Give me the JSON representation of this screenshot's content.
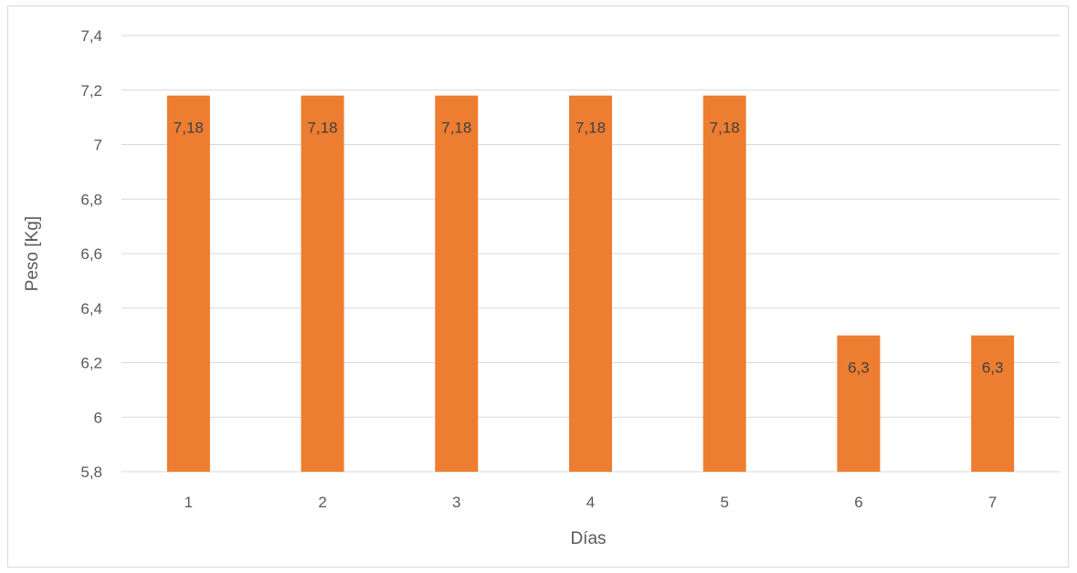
{
  "chart_data": {
    "type": "bar",
    "categories": [
      "1",
      "2",
      "3",
      "4",
      "5",
      "6",
      "7"
    ],
    "values": [
      7.18,
      7.18,
      7.18,
      7.18,
      7.18,
      6.3,
      6.3
    ],
    "value_labels": [
      "7,18",
      "7,18",
      "7,18",
      "7,18",
      "7,18",
      "6,3",
      "6,3"
    ],
    "title": "",
    "xlabel": "Días",
    "ylabel": "Peso [Kg]",
    "ylim": [
      5.8,
      7.4
    ],
    "yticks": [
      5.8,
      6,
      6.2,
      6.4,
      6.6,
      6.8,
      7,
      7.2,
      7.4
    ],
    "ytick_labels": [
      "5,8",
      "6",
      "6,2",
      "6,4",
      "6,6",
      "6,8",
      "7",
      "7,2",
      "7,4"
    ],
    "grid": true,
    "legend": "none",
    "bar_color": "#ED7D31",
    "grid_color": "#D9D9D9"
  }
}
